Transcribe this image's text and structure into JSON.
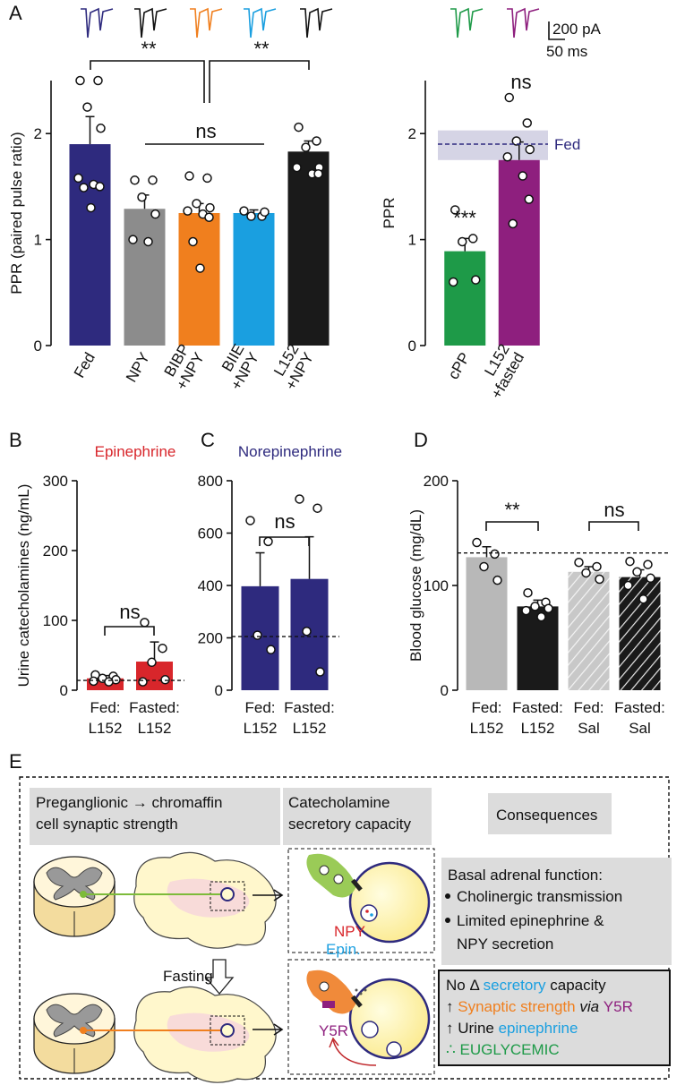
{
  "chart_data": [
    {
      "type": "bar",
      "panel": "A",
      "y_label": "PPR (paired pulse ratio)",
      "categories": [
        "Fed",
        "NPY",
        "BIBP\n+NPY",
        "BIIE\n+NPY",
        "L152\n+NPY"
      ],
      "values": [
        1.9,
        1.29,
        1.25,
        1.25,
        1.83
      ],
      "errors": [
        0.26,
        0.13,
        0.09,
        0.03,
        0.1
      ],
      "points": [
        [
          2.5,
          2.5,
          2.25,
          2.05,
          1.58,
          1.52,
          1.5,
          1.49,
          1.3
        ],
        [
          1.56,
          1.56,
          1.4,
          1.24,
          1.0,
          0.98
        ],
        [
          1.6,
          1.58,
          1.34,
          1.3,
          1.27,
          1.24,
          1.21,
          0.98,
          0.73
        ],
        [
          1.27,
          1.22,
          1.22,
          1.26
        ],
        [
          2.06,
          1.93,
          1.87,
          1.68,
          1.68,
          1.62,
          1.62
        ]
      ],
      "colors": [
        "#2e2a7e",
        "#8c8c8c",
        "#f07f1e",
        "#1a9fe0",
        "#1a1a1a"
      ],
      "annotations": [
        "**",
        "**",
        "ns"
      ],
      "ylim": [
        0,
        2.5
      ],
      "yticks": [
        0,
        1,
        2
      ]
    },
    {
      "type": "bar",
      "y_label": "PPR",
      "categories": [
        "cPP",
        "L152\n+fasted"
      ],
      "values": [
        0.89,
        1.75
      ],
      "errors": [
        0.12,
        0.17
      ],
      "points": [
        [
          1.28,
          1.01,
          0.98,
          0.62,
          0.6
        ],
        [
          2.34,
          2.1,
          1.93,
          1.85,
          1.78,
          1.6,
          1.38,
          1.15
        ]
      ],
      "colors": [
        "#1e9a48",
        "#8e1f7e"
      ],
      "reference_band": {
        "value": 1.9,
        "range": [
          1.75,
          2.03
        ],
        "label": "Fed",
        "color": "#2e2a7e"
      },
      "annotations": [
        "***",
        "ns"
      ],
      "scale_bar": [
        "200 pA",
        "50 ms"
      ],
      "ylim": [
        0,
        2.5
      ],
      "yticks": [
        0,
        1,
        2
      ]
    },
    {
      "type": "bar",
      "panel": "B",
      "title": "Epinephrine",
      "title_color": "#d8262b",
      "y_label": "Urine catecholamines (ng/mL)",
      "categories": [
        "Fed:\nL152",
        "Fasted:\nL152"
      ],
      "values": [
        17,
        41
      ],
      "errors": [
        4,
        28
      ],
      "points": [
        [
          22,
          20,
          17,
          15,
          13,
          12
        ],
        [
          97,
          60,
          40,
          15,
          12
        ]
      ],
      "colors": [
        "#d8262b",
        "#d8262b"
      ],
      "reference_line": 14,
      "annotations": [
        "ns"
      ],
      "ylim": [
        0,
        300
      ],
      "yticks": [
        0,
        100,
        200,
        300
      ]
    },
    {
      "type": "bar",
      "panel": "C",
      "title": "Norepinephrine",
      "title_color": "#2e2a7e",
      "categories": [
        "Fed:\nL152",
        "Fasted:\nL152"
      ],
      "values": [
        397,
        425
      ],
      "errors": [
        128,
        161
      ],
      "points": [
        [
          648,
          568,
          210,
          155
        ],
        [
          730,
          695,
          225,
          70
        ]
      ],
      "colors": [
        "#2e2a7e",
        "#2e2a7e"
      ],
      "reference_line": 205,
      "annotations": [
        "ns"
      ],
      "ylim": [
        0,
        800
      ],
      "yticks": [
        0,
        200,
        400,
        600,
        800
      ]
    },
    {
      "type": "bar",
      "panel": "D",
      "y_label": "Blood glucose (mg/dL)",
      "categories": [
        "Fed:\nL152",
        "Fasted:\nL152",
        "Fed:\nSal",
        "Fasted:\nSal"
      ],
      "values": [
        127,
        80,
        113,
        108
      ],
      "errors": [
        10,
        6,
        5,
        7
      ],
      "points": [
        [
          141,
          130,
          118,
          105
        ],
        [
          93,
          84,
          80,
          78,
          76,
          70
        ],
        [
          122,
          118,
          112,
          106
        ],
        [
          123,
          120,
          113,
          107,
          100,
          87
        ]
      ],
      "colors": [
        "#b8b8b8",
        "#1a1a1a",
        "#c8c8c8",
        "#1a1a1a"
      ],
      "hatch": [
        false,
        false,
        true,
        true
      ],
      "reference_line": 131,
      "annotations": [
        "**",
        "ns"
      ],
      "ylim": [
        0,
        200
      ],
      "yticks": [
        0,
        100,
        200
      ]
    }
  ],
  "diagram": {
    "panel": "E",
    "headers": [
      "Preganglionic → chromaffin\ncell synaptic strength",
      "Catecholamine\nsecretory capacity",
      "Consequences"
    ],
    "fasting": "Fasting",
    "labels": [
      "NPY",
      "Epin.",
      "Y5R"
    ],
    "basal": {
      "title": "Basal adrenal function:",
      "items": [
        "Cholinergic transmission",
        "Limited epinephrine &\nNPY secretion"
      ]
    },
    "fasted": [
      [
        {
          "text": "No Δ "
        },
        {
          "text": "secretory",
          "color": "#1a9fe0"
        },
        {
          "text": " capacity"
        }
      ],
      [
        {
          "text": "↑ "
        },
        {
          "text": "Synaptic strength",
          "color": "#f07f1e"
        },
        {
          "text": " via ",
          "italic": true
        },
        {
          "text": "Y5R",
          "color": "#8e1f7e"
        }
      ],
      [
        {
          "text": "↑ Urine "
        },
        {
          "text": "epinephrine",
          "color": "#1a9fe0"
        }
      ],
      [
        {
          "text": "∴ EUGLYCEMIC",
          "color": "#1e9a48"
        }
      ]
    ]
  }
}
